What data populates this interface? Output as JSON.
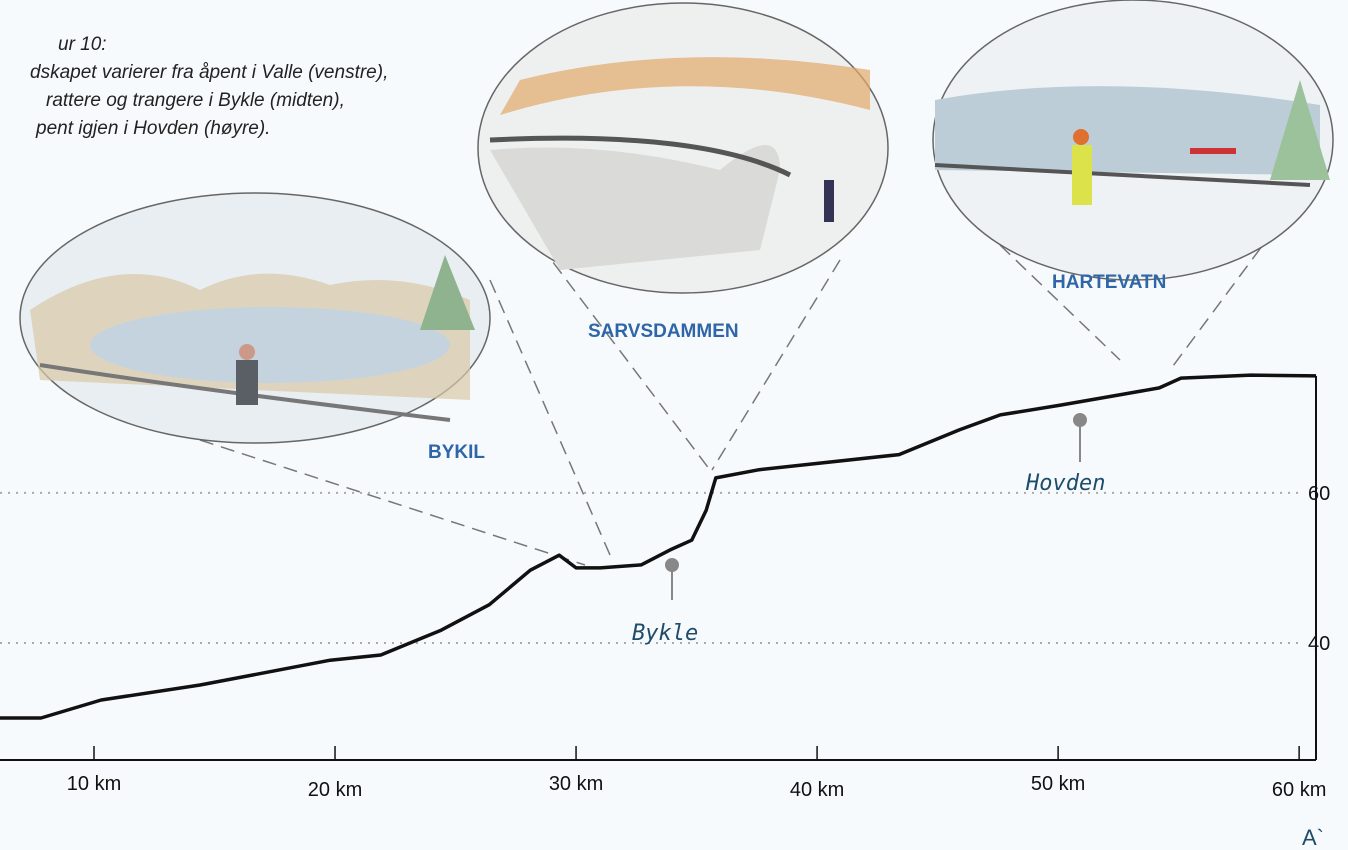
{
  "chart_data": {
    "type": "line",
    "caption": [
      "ur 10:",
      "dskapet varierer fra åpent i Valle (venstre),",
      "rattere og trangere i Bykle (midten),",
      "pent igjen i Hovden (høyre)."
    ],
    "x": [
      6.1,
      7.8,
      10.3,
      14.4,
      19.8,
      21.9,
      24.4,
      26.4,
      28.1,
      29.3,
      30.0,
      31.0,
      32.7,
      33.9,
      34.8,
      35.4,
      35.8,
      37.6,
      43.4,
      45.9,
      47.6,
      50.1,
      52.6,
      54.2,
      55.1,
      58.0,
      60.7
    ],
    "series": [
      {
        "color": "#111111",
        "values": [
          30,
          30,
          32.4,
          34.4,
          37.7,
          38.4,
          41.7,
          45.1,
          49.7,
          51.7,
          50,
          50,
          50.4,
          52.4,
          53.7,
          57.7,
          62,
          63.1,
          65.1,
          68.4,
          70.4,
          71.7,
          73.1,
          74,
          75.3,
          75.7,
          75.6
        ]
      }
    ],
    "xlim": [
      6.1,
      60.7
    ],
    "ylim": [
      24.4,
      125.7
    ],
    "xticks": [
      {
        "value": 10,
        "label": "10 km"
      },
      {
        "value": 20,
        "label": "20 km"
      },
      {
        "value": 30,
        "label": "30 km"
      },
      {
        "value": 40,
        "label": "40 km"
      },
      {
        "value": 50,
        "label": "50 km"
      },
      {
        "value": 60,
        "label": "60 km"
      }
    ],
    "yticks": [
      40,
      60
    ],
    "grid": true,
    "annotations": {
      "bykil": "BYKIL",
      "sarvsdammen": "SARVSDAMMEN",
      "hartevatn": "HARTEVATN",
      "bykle": "Bykle",
      "hovden": "Hovden",
      "end": "A`"
    }
  }
}
